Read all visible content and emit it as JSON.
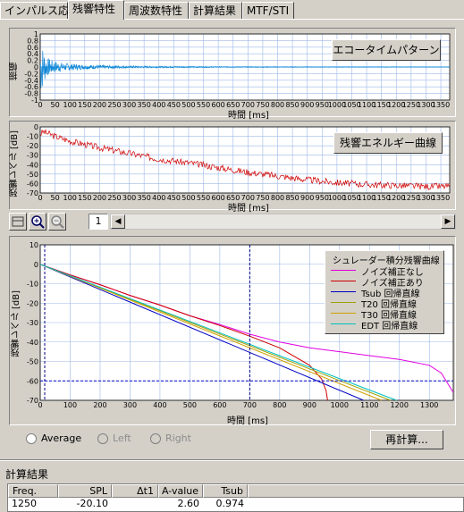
{
  "tabs": [
    {
      "label": "インパルス応答",
      "active": false
    },
    {
      "label": "残響特性",
      "active": true
    },
    {
      "label": "周波数特性",
      "active": false
    },
    {
      "label": "計算結果",
      "active": false
    },
    {
      "label": "MTF/STI",
      "active": false
    }
  ],
  "charts": {
    "echo": {
      "button": "エコータイムパターン",
      "ylabel": "振幅",
      "xlabel": "時間 [ms]",
      "yticks": [
        "1",
        "0.8",
        "0.6",
        "0.4",
        "0.2",
        "0",
        "-0.2",
        "-0.4",
        "-0.6",
        "-0.8",
        "-1"
      ],
      "xticks": [
        "0",
        "50",
        "100",
        "150",
        "200",
        "250",
        "300",
        "350",
        "400",
        "450",
        "500",
        "550",
        "600",
        "650",
        "700",
        "750",
        "800",
        "850",
        "900",
        "950",
        "1000",
        "1050",
        "1100",
        "1150",
        "1200",
        "1250",
        "1300",
        "1350"
      ]
    },
    "energy": {
      "button": "残響エネルギー曲線",
      "ylabel": "残響レベル [dB]",
      "xlabel": "時間 [ms]",
      "yticks": [
        "0",
        "-10",
        "-20",
        "-30",
        "-40",
        "-50",
        "-60",
        "-70"
      ],
      "xticks": [
        "0",
        "50",
        "100",
        "150",
        "200",
        "250",
        "300",
        "350",
        "400",
        "450",
        "500",
        "550",
        "600",
        "650",
        "700",
        "750",
        "800",
        "850",
        "900",
        "950",
        "1000",
        "1050",
        "1100",
        "1150",
        "1200",
        "1250",
        "1300",
        "1350"
      ]
    },
    "decay": {
      "ylabel": "残響レベル [dB]",
      "xlabel": "時間 [ms]",
      "yticks": [
        "10",
        "0",
        "-10",
        "-20",
        "-30",
        "-40",
        "-50",
        "-60",
        "-70"
      ],
      "xticks": [
        "0",
        "100",
        "200",
        "300",
        "400",
        "500",
        "600",
        "700",
        "800",
        "900",
        "1000",
        "1100",
        "1200",
        "1300"
      ],
      "legend_title": "シュレーダー積分残響曲線",
      "legend": [
        {
          "label": "ノイズ補正なし",
          "color": "#e000e0"
        },
        {
          "label": "ノイズ補正あり",
          "color": "#d00000"
        },
        {
          "label": "Tsub 回帰直線",
          "color": "#0000c0"
        },
        {
          "label": "T20 回帰直線",
          "color": "#a0a000"
        },
        {
          "label": "T30 回帰直線",
          "color": "#d0a000"
        },
        {
          "label": "EDT 回帰直線",
          "color": "#00c0c0"
        }
      ]
    }
  },
  "chart_data": [
    {
      "type": "line",
      "title": "エコータイムパターン",
      "xlabel": "時間 [ms]",
      "ylabel": "振幅",
      "xlim": [
        0,
        1380
      ],
      "ylim": [
        -1,
        1
      ],
      "series": [
        {
          "values_desc": [],
          "x": [
            0,
            20,
            40,
            80,
            150,
            250,
            400,
            600,
            900,
            1200,
            1380
          ],
          "y": [
            0.9,
            0.3,
            0.2,
            0.12,
            0.07,
            0.04,
            0.025,
            0.015,
            0.01,
            0.008,
            0.005
          ]
        }
      ]
    },
    {
      "type": "line",
      "title": "残響エネルギー曲線",
      "xlabel": "時間 [ms]",
      "ylabel": "残響レベル [dB]",
      "xlim": [
        0,
        1380
      ],
      "ylim": [
        -70,
        0
      ],
      "series": [
        {
          "x": [
            0,
            10,
            50,
            100,
            200,
            300,
            400,
            500,
            600,
            700,
            800,
            900,
            1000,
            1100,
            1200,
            1300,
            1380
          ],
          "y": [
            -8,
            -5,
            -10,
            -15,
            -22,
            -28,
            -34,
            -38,
            -43,
            -48,
            -52,
            -56,
            -59,
            -61,
            -62,
            -63,
            -63
          ]
        }
      ]
    },
    {
      "type": "line",
      "title": "シュレーダー積分残響曲線",
      "xlabel": "時間 [ms]",
      "ylabel": "残響レベル [dB]",
      "xlim": [
        0,
        1380
      ],
      "ylim": [
        -70,
        10
      ],
      "series": [
        {
          "name": "ノイズ補正なし",
          "x": [
            0,
            100,
            200,
            300,
            400,
            500,
            600,
            700,
            800,
            900,
            1000,
            1100,
            1200,
            1300,
            1340,
            1380
          ],
          "y": [
            0,
            -5.5,
            -10.5,
            -16,
            -21,
            -26.5,
            -31,
            -36,
            -40,
            -43,
            -45,
            -47,
            -49,
            -52,
            -56,
            -66
          ]
        },
        {
          "name": "ノイズ補正あり",
          "x": [
            0,
            100,
            200,
            300,
            400,
            500,
            600,
            700,
            800,
            900,
            940,
            955,
            960
          ],
          "y": [
            0,
            -5.5,
            -10.5,
            -16,
            -21,
            -26.5,
            -31.5,
            -37,
            -43,
            -52,
            -59,
            -65,
            -70
          ]
        },
        {
          "name": "Tsub 回帰直線",
          "x": [
            0,
            1080
          ],
          "y": [
            0,
            -70
          ]
        },
        {
          "name": "T20 回帰直線",
          "x": [
            0,
            1170
          ],
          "y": [
            0,
            -70
          ]
        },
        {
          "name": "T30 回帰直線",
          "x": [
            0,
            1140
          ],
          "y": [
            0,
            -70
          ]
        },
        {
          "name": "EDT 回帰直線",
          "x": [
            0,
            1190
          ],
          "y": [
            0,
            -70
          ]
        }
      ],
      "markers": {
        "vlines_ms": [
          15,
          700
        ],
        "hline_db": -60
      }
    }
  ],
  "toolbar": {
    "page": "1"
  },
  "radios": [
    {
      "label": "Average",
      "disabled": false
    },
    {
      "label": "Left",
      "disabled": true
    },
    {
      "label": "Right",
      "disabled": true
    }
  ],
  "recalc_label": "再計算...",
  "results": {
    "title": "計算結果",
    "headers": [
      "Freq.",
      "SPL",
      "Δt1",
      "A-value",
      "Tsub"
    ],
    "row": [
      "1250",
      "-20.10",
      "",
      "2.60",
      "0.974"
    ]
  }
}
